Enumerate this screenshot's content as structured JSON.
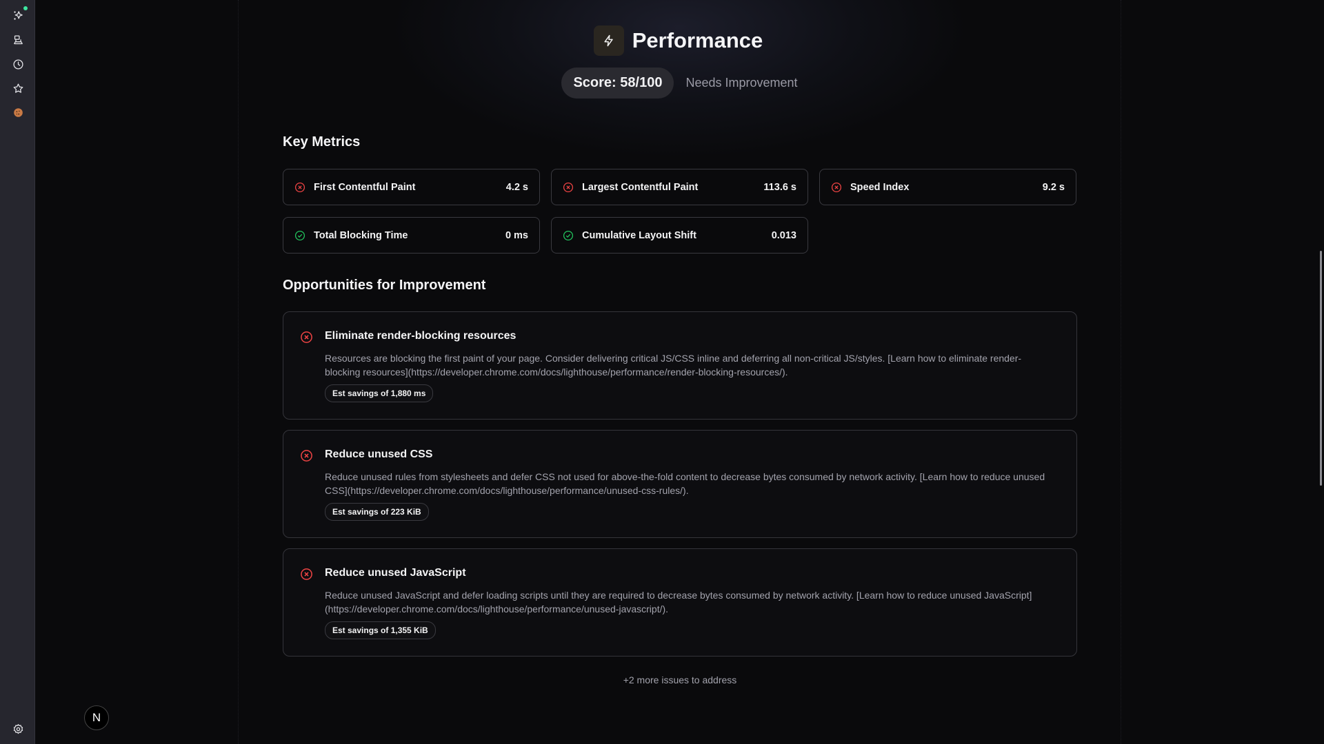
{
  "sidebar": {
    "items": [
      {
        "icon": "sparkles-icon"
      },
      {
        "icon": "devices-icon"
      },
      {
        "icon": "clock-icon"
      },
      {
        "icon": "star-icon"
      },
      {
        "icon": "cookie-icon"
      }
    ],
    "settings_icon": "gear-icon",
    "status_dot_color": "#3ee6a0"
  },
  "header": {
    "icon": "lightning-icon",
    "title": "Performance",
    "score": "Score: 58/100",
    "status": "Needs Improvement"
  },
  "key_metrics": {
    "heading": "Key Metrics",
    "items": [
      {
        "label": "First Contentful Paint",
        "value": "4.2 s",
        "status": "fail"
      },
      {
        "label": "Largest Contentful Paint",
        "value": "113.6 s",
        "status": "fail"
      },
      {
        "label": "Speed Index",
        "value": "9.2 s",
        "status": "fail"
      },
      {
        "label": "Total Blocking Time",
        "value": "0 ms",
        "status": "pass"
      },
      {
        "label": "Cumulative Layout Shift",
        "value": "0.013",
        "status": "pass"
      }
    ]
  },
  "opportunities": {
    "heading": "Opportunities for Improvement",
    "items": [
      {
        "title": "Eliminate render-blocking resources",
        "description": "Resources are blocking the first paint of your page. Consider delivering critical JS/CSS inline and deferring all non-critical JS/styles. [Learn how to eliminate render-blocking resources](https://developer.chrome.com/docs/lighthouse/performance/render-blocking-resources/).",
        "savings": "Est savings of 1,880 ms"
      },
      {
        "title": "Reduce unused CSS",
        "description": "Reduce unused rules from stylesheets and defer CSS not used for above-the-fold content to decrease bytes consumed by network activity. [Learn how to reduce unused CSS](https://developer.chrome.com/docs/lighthouse/performance/unused-css-rules/).",
        "savings": "Est savings of 223 KiB"
      },
      {
        "title": "Reduce unused JavaScript",
        "description": "Reduce unused JavaScript and defer loading scripts until they are required to decrease bytes consumed by network activity. [Learn how to reduce unused JavaScript](https://developer.chrome.com/docs/lighthouse/performance/unused-javascript/).",
        "savings": "Est savings of 1,355 KiB"
      }
    ],
    "more": "+2 more issues to address"
  },
  "avatar": {
    "letter": "N"
  },
  "colors": {
    "fail": "#ef4444",
    "pass": "#22c55e",
    "cookie": "#c97a45"
  }
}
